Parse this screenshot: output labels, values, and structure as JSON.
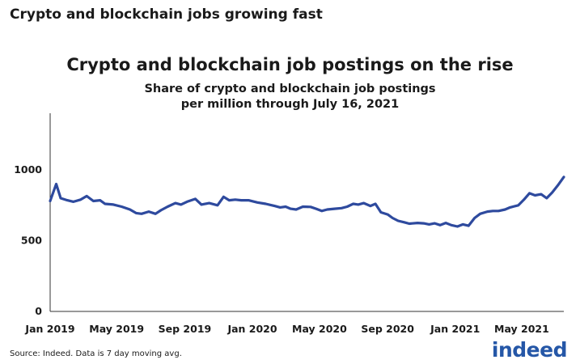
{
  "page_heading": "Crypto and blockchain jobs growing fast",
  "source_note": "Source: Indeed. Data is 7 day moving avg.",
  "logo_text": "indeed",
  "colors": {
    "line": "#2e4a9e",
    "axis": "#333333",
    "logo": "#2557a7"
  },
  "chart_data": {
    "type": "line",
    "title": "Crypto and blockchain job postings on the rise",
    "subtitle": [
      "Share of crypto and blockchain job postings",
      "per million through July 16, 2021"
    ],
    "xlabel": "",
    "ylabel": "",
    "x_range": [
      "2019-01-01",
      "2021-07-16"
    ],
    "ylim": [
      0,
      1400
    ],
    "y_ticks": [
      0,
      500,
      1000
    ],
    "x_ticks": [
      {
        "date": "2019-01-01",
        "label": "Jan 2019"
      },
      {
        "date": "2019-05-01",
        "label": "May 2019"
      },
      {
        "date": "2019-09-01",
        "label": "Sep 2019"
      },
      {
        "date": "2020-01-01",
        "label": "Jan 2020"
      },
      {
        "date": "2020-05-01",
        "label": "May 2020"
      },
      {
        "date": "2020-09-01",
        "label": "Sep 2020"
      },
      {
        "date": "2021-01-01",
        "label": "Jan 2021"
      },
      {
        "date": "2021-05-01",
        "label": "May 2021"
      }
    ],
    "grid": false,
    "series": [
      {
        "values": [
          [
            "2019-01-01",
            780
          ],
          [
            "2019-01-12",
            900
          ],
          [
            "2019-01-20",
            800
          ],
          [
            "2019-02-01",
            785
          ],
          [
            "2019-02-12",
            775
          ],
          [
            "2019-02-25",
            790
          ],
          [
            "2019-03-08",
            815
          ],
          [
            "2019-03-20",
            780
          ],
          [
            "2019-04-01",
            785
          ],
          [
            "2019-04-10",
            760
          ],
          [
            "2019-04-25",
            755
          ],
          [
            "2019-05-10",
            740
          ],
          [
            "2019-05-25",
            720
          ],
          [
            "2019-06-05",
            695
          ],
          [
            "2019-06-15",
            690
          ],
          [
            "2019-06-28",
            705
          ],
          [
            "2019-07-10",
            690
          ],
          [
            "2019-07-20",
            715
          ],
          [
            "2019-08-01",
            740
          ],
          [
            "2019-08-15",
            765
          ],
          [
            "2019-08-25",
            755
          ],
          [
            "2019-09-05",
            775
          ],
          [
            "2019-09-20",
            795
          ],
          [
            "2019-10-01",
            755
          ],
          [
            "2019-10-15",
            765
          ],
          [
            "2019-10-30",
            750
          ],
          [
            "2019-11-10",
            810
          ],
          [
            "2019-11-20",
            785
          ],
          [
            "2019-12-01",
            790
          ],
          [
            "2019-12-12",
            785
          ],
          [
            "2019-12-25",
            785
          ],
          [
            "2020-01-10",
            770
          ],
          [
            "2020-01-25",
            760
          ],
          [
            "2020-02-10",
            745
          ],
          [
            "2020-02-20",
            735
          ],
          [
            "2020-03-01",
            740
          ],
          [
            "2020-03-10",
            725
          ],
          [
            "2020-03-20",
            720
          ],
          [
            "2020-04-01",
            740
          ],
          [
            "2020-04-15",
            738
          ],
          [
            "2020-04-25",
            725
          ],
          [
            "2020-05-05",
            710
          ],
          [
            "2020-05-15",
            720
          ],
          [
            "2020-05-28",
            725
          ],
          [
            "2020-06-10",
            730
          ],
          [
            "2020-06-20",
            740
          ],
          [
            "2020-07-01",
            760
          ],
          [
            "2020-07-10",
            755
          ],
          [
            "2020-07-20",
            765
          ],
          [
            "2020-08-01",
            745
          ],
          [
            "2020-08-10",
            760
          ],
          [
            "2020-08-20",
            700
          ],
          [
            "2020-09-01",
            685
          ],
          [
            "2020-09-10",
            660
          ],
          [
            "2020-09-20",
            640
          ],
          [
            "2020-10-01",
            630
          ],
          [
            "2020-10-10",
            620
          ],
          [
            "2020-10-25",
            625
          ],
          [
            "2020-11-05",
            622
          ],
          [
            "2020-11-15",
            615
          ],
          [
            "2020-11-25",
            622
          ],
          [
            "2020-12-05",
            610
          ],
          [
            "2020-12-15",
            625
          ],
          [
            "2020-12-25",
            610
          ],
          [
            "2021-01-05",
            600
          ],
          [
            "2021-01-15",
            615
          ],
          [
            "2021-01-25",
            605
          ],
          [
            "2021-02-05",
            660
          ],
          [
            "2021-02-15",
            690
          ],
          [
            "2021-02-28",
            705
          ],
          [
            "2021-03-10",
            710
          ],
          [
            "2021-03-20",
            710
          ],
          [
            "2021-04-01",
            720
          ],
          [
            "2021-04-10",
            735
          ],
          [
            "2021-04-25",
            750
          ],
          [
            "2021-05-05",
            790
          ],
          [
            "2021-05-15",
            835
          ],
          [
            "2021-05-25",
            820
          ],
          [
            "2021-06-05",
            828
          ],
          [
            "2021-06-15",
            800
          ],
          [
            "2021-06-25",
            840
          ],
          [
            "2021-07-05",
            890
          ],
          [
            "2021-07-16",
            950
          ]
        ]
      }
    ]
  }
}
